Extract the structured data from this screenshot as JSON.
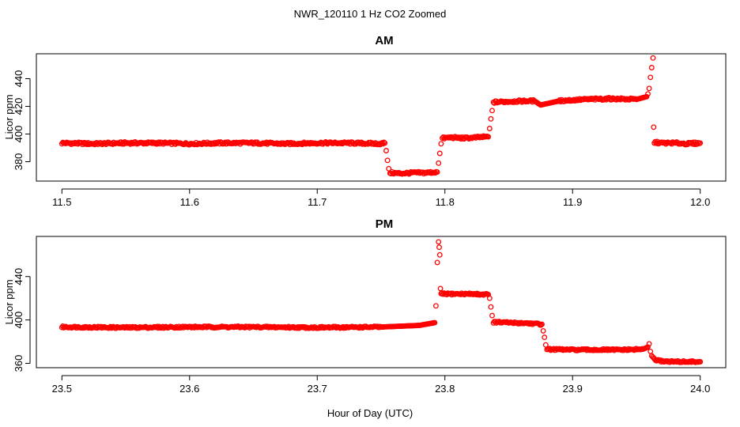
{
  "figure": {
    "title": "NWR_120110  1 Hz CO2 Zoomed",
    "xlabel": "Hour of Day (UTC)"
  },
  "chart_data": [
    {
      "type": "scatter",
      "title": "AM",
      "xlabel": "Hour of Day (UTC)",
      "ylabel": "Licor ppm",
      "xlim": [
        11.48,
        12.02
      ],
      "ylim": [
        366,
        458
      ],
      "xticks": [
        11.5,
        11.6,
        11.7,
        11.8,
        11.9,
        12.0
      ],
      "xtick_labels": [
        "11.5",
        "11.6",
        "11.7",
        "11.8",
        "11.9",
        "12.0"
      ],
      "yticks": [
        380,
        400,
        420,
        440
      ],
      "ytick_labels": [
        "380",
        "400",
        "420",
        "440"
      ],
      "grid": false,
      "marker": "open-circle",
      "color": "#ff0000",
      "series": [
        {
          "x": [
            11.5,
            11.525,
            11.55,
            11.575,
            11.6,
            11.625,
            11.65,
            11.675,
            11.7,
            11.725,
            11.75,
            11.753,
            11.754,
            11.755,
            11.756,
            11.757,
            11.765,
            11.775,
            11.785,
            11.794,
            11.795,
            11.796,
            11.797,
            11.798,
            11.805,
            11.815,
            11.825,
            11.834,
            11.835,
            11.836,
            11.837,
            11.838,
            11.85,
            11.87,
            11.875,
            11.89,
            11.91,
            11.93,
            11.95,
            11.958,
            11.959,
            11.96,
            11.961,
            11.962,
            11.963,
            11.9635,
            11.964,
            11.97,
            11.98,
            11.99,
            12.0
          ],
          "y": [
            393.5,
            393,
            393.5,
            393.5,
            393,
            393.5,
            393.5,
            393,
            393.5,
            393.5,
            393,
            393.5,
            388,
            381,
            375,
            372,
            371.5,
            372,
            372,
            372.5,
            379,
            386,
            393,
            397,
            397.5,
            397,
            397.5,
            398,
            404,
            411,
            417,
            423,
            423.5,
            424,
            421,
            424,
            425,
            425.5,
            425,
            427,
            429,
            433,
            441,
            448,
            455,
            405,
            394,
            393.5,
            393.5,
            393,
            393.5
          ]
        }
      ]
    },
    {
      "type": "scatter",
      "title": "PM",
      "xlabel": "Hour of Day (UTC)",
      "ylabel": "Licor ppm",
      "xlim": [
        23.48,
        24.02
      ],
      "ylim": [
        356,
        477
      ],
      "xticks": [
        23.5,
        23.6,
        23.7,
        23.8,
        23.9,
        24.0
      ],
      "xtick_labels": [
        "23.5",
        "23.6",
        "23.7",
        "23.8",
        "23.9",
        "24.0"
      ],
      "yticks": [
        360,
        400,
        440
      ],
      "ytick_labels": [
        "360",
        "400",
        "440"
      ],
      "grid": false,
      "marker": "open-circle",
      "color": "#ff0000",
      "series": [
        {
          "x": [
            23.5,
            23.55,
            23.6,
            23.65,
            23.7,
            23.75,
            23.78,
            23.792,
            23.793,
            23.794,
            23.795,
            23.7955,
            23.796,
            23.7965,
            23.797,
            23.8,
            23.81,
            23.82,
            23.834,
            23.835,
            23.836,
            23.837,
            23.838,
            23.85,
            23.865,
            23.876,
            23.877,
            23.878,
            23.879,
            23.88,
            23.9,
            23.92,
            23.94,
            23.955,
            23.959,
            23.96,
            23.961,
            23.962,
            23.965,
            23.97,
            23.98,
            23.99,
            24.0
          ],
          "y": [
            393.5,
            393,
            393.5,
            393.5,
            393,
            393.5,
            395,
            397.5,
            413,
            453,
            472,
            467,
            460,
            429,
            424,
            424,
            424,
            424,
            423.5,
            420,
            412,
            404,
            398,
            397.5,
            397,
            396,
            390,
            384,
            377,
            373,
            372.5,
            372.5,
            372.5,
            373,
            375,
            378,
            371,
            367,
            363,
            362,
            361.5,
            361.5,
            361.5
          ]
        }
      ]
    }
  ]
}
